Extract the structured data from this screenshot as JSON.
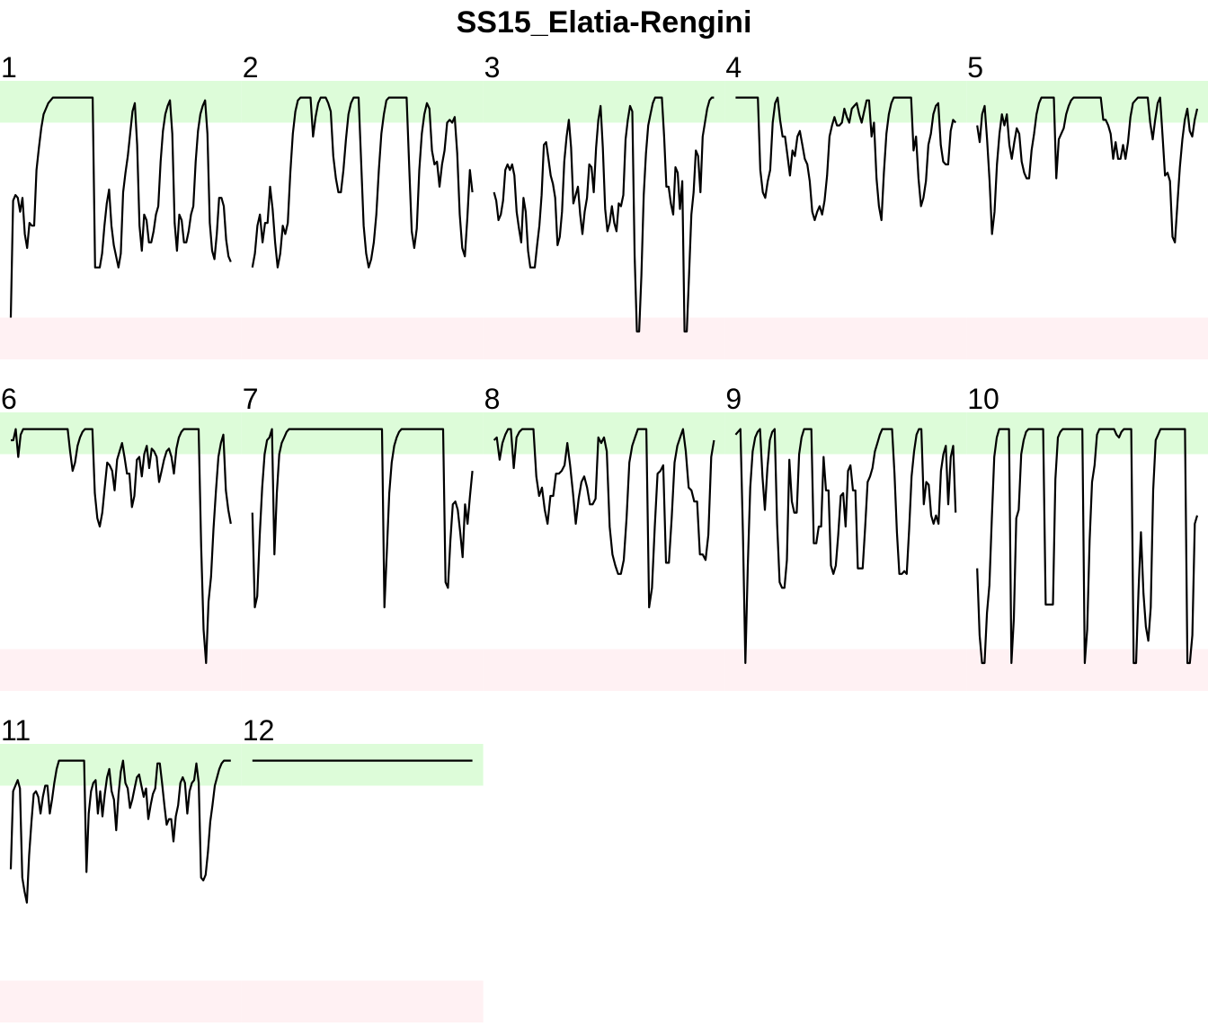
{
  "chart_data": {
    "type": "line",
    "title": "SS15_Elatia-Rengini",
    "xlabel": "",
    "ylabel": "",
    "ylim": [
      0,
      1
    ],
    "grid": false,
    "legend": "none",
    "band_colors": {
      "upper": "#ddfcd9",
      "lower": "#fff1f3"
    },
    "line_color": "#000000",
    "bands": {
      "upper": [
        0.85,
        1.0
      ],
      "lower": [
        0.0,
        0.15
      ]
    },
    "panels": [
      {
        "label": "1",
        "values": [
          0.15,
          0.57,
          0.59,
          0.58,
          0.53,
          0.58,
          0.45,
          0.4,
          0.49,
          0.48,
          0.48,
          0.68,
          0.76,
          0.83,
          0.88,
          0.9,
          0.92,
          0.93,
          0.94,
          0.94,
          0.94,
          0.94,
          0.94,
          0.94,
          0.94,
          0.94,
          0.94,
          0.94,
          0.94,
          0.94,
          0.94,
          0.94,
          0.94,
          0.94,
          0.94,
          0.94,
          0.33,
          0.33,
          0.33,
          0.38,
          0.48,
          0.56,
          0.61,
          0.48,
          0.41,
          0.37,
          0.33,
          0.38,
          0.6,
          0.67,
          0.73,
          0.81,
          0.89,
          0.92,
          0.77,
          0.48,
          0.39,
          0.52,
          0.5,
          0.42,
          0.42,
          0.46,
          0.52,
          0.55,
          0.71,
          0.82,
          0.88,
          0.91,
          0.93,
          0.81,
          0.49,
          0.39,
          0.52,
          0.5,
          0.42,
          0.42,
          0.46,
          0.52,
          0.55,
          0.71,
          0.82,
          0.88,
          0.91,
          0.93,
          0.81,
          0.49,
          0.39,
          0.36,
          0.45,
          0.58,
          0.58,
          0.55,
          0.43,
          0.37,
          0.35
        ]
      },
      {
        "label": "2",
        "values": [
          0.33,
          0.38,
          0.48,
          0.52,
          0.42,
          0.49,
          0.49,
          0.62,
          0.54,
          0.42,
          0.33,
          0.38,
          0.48,
          0.45,
          0.49,
          0.67,
          0.81,
          0.89,
          0.93,
          0.94,
          0.94,
          0.94,
          0.94,
          0.94,
          0.8,
          0.87,
          0.92,
          0.94,
          0.94,
          0.94,
          0.92,
          0.89,
          0.73,
          0.65,
          0.6,
          0.6,
          0.68,
          0.79,
          0.88,
          0.92,
          0.94,
          0.94,
          0.94,
          0.71,
          0.48,
          0.38,
          0.33,
          0.36,
          0.42,
          0.52,
          0.68,
          0.81,
          0.88,
          0.93,
          0.94,
          0.94,
          0.94,
          0.94,
          0.94,
          0.94,
          0.94,
          0.94,
          0.69,
          0.46,
          0.4,
          0.47,
          0.68,
          0.81,
          0.88,
          0.92,
          0.9,
          0.75,
          0.7,
          0.71,
          0.62,
          0.7,
          0.75,
          0.85,
          0.86,
          0.85,
          0.87,
          0.74,
          0.52,
          0.4,
          0.37,
          0.51,
          0.68,
          0.6
        ]
      },
      {
        "label": "3",
        "values": [
          0.6,
          0.57,
          0.5,
          0.52,
          0.57,
          0.68,
          0.7,
          0.68,
          0.7,
          0.66,
          0.53,
          0.47,
          0.42,
          0.58,
          0.53,
          0.39,
          0.33,
          0.33,
          0.33,
          0.41,
          0.48,
          0.59,
          0.77,
          0.78,
          0.72,
          0.66,
          0.63,
          0.58,
          0.41,
          0.44,
          0.53,
          0.71,
          0.8,
          0.86,
          0.76,
          0.56,
          0.59,
          0.62,
          0.52,
          0.45,
          0.53,
          0.58,
          0.7,
          0.69,
          0.6,
          0.76,
          0.86,
          0.91,
          0.76,
          0.54,
          0.46,
          0.49,
          0.55,
          0.49,
          0.46,
          0.56,
          0.55,
          0.59,
          0.79,
          0.86,
          0.91,
          0.89,
          0.37,
          0.1,
          0.1,
          0.3,
          0.59,
          0.74,
          0.84,
          0.88,
          0.92,
          0.94,
          0.94,
          0.94,
          0.94,
          0.8,
          0.62,
          0.62,
          0.56,
          0.52,
          0.69,
          0.67,
          0.54,
          0.64,
          0.1,
          0.1,
          0.3,
          0.52,
          0.6,
          0.75,
          0.73,
          0.6,
          0.8,
          0.85,
          0.9,
          0.93,
          0.94,
          0.94
        ]
      },
      {
        "label": "4",
        "values": [
          0.94,
          0.94,
          0.94,
          0.94,
          0.94,
          0.94,
          0.94,
          0.94,
          0.94,
          0.94,
          0.68,
          0.6,
          0.58,
          0.64,
          0.68,
          0.85,
          0.92,
          0.94,
          0.86,
          0.8,
          0.8,
          0.73,
          0.66,
          0.75,
          0.73,
          0.8,
          0.82,
          0.77,
          0.72,
          0.7,
          0.64,
          0.53,
          0.5,
          0.53,
          0.55,
          0.52,
          0.57,
          0.66,
          0.8,
          0.84,
          0.87,
          0.84,
          0.84,
          0.85,
          0.9,
          0.87,
          0.85,
          0.9,
          0.91,
          0.92,
          0.88,
          0.85,
          0.89,
          0.93,
          0.93,
          0.8,
          0.85,
          0.65,
          0.55,
          0.5,
          0.67,
          0.81,
          0.88,
          0.92,
          0.94,
          0.94,
          0.94,
          0.94,
          0.94,
          0.94,
          0.94,
          0.94,
          0.75,
          0.8,
          0.65,
          0.55,
          0.58,
          0.64,
          0.77,
          0.81,
          0.88,
          0.91,
          0.92,
          0.77,
          0.71,
          0.7,
          0.7,
          0.82,
          0.86,
          0.85
        ]
      },
      {
        "label": "5",
        "values": [
          0.84,
          0.78,
          0.88,
          0.91,
          0.79,
          0.64,
          0.45,
          0.53,
          0.7,
          0.81,
          0.88,
          0.84,
          0.88,
          0.77,
          0.72,
          0.78,
          0.83,
          0.81,
          0.71,
          0.67,
          0.65,
          0.65,
          0.75,
          0.81,
          0.88,
          0.92,
          0.94,
          0.94,
          0.94,
          0.94,
          0.94,
          0.94,
          0.65,
          0.79,
          0.81,
          0.83,
          0.88,
          0.91,
          0.93,
          0.94,
          0.94,
          0.94,
          0.94,
          0.94,
          0.94,
          0.94,
          0.94,
          0.94,
          0.94,
          0.94,
          0.94,
          0.86,
          0.86,
          0.84,
          0.81,
          0.72,
          0.78,
          0.72,
          0.72,
          0.77,
          0.72,
          0.78,
          0.87,
          0.92,
          0.93,
          0.94,
          0.94,
          0.94,
          0.94,
          0.94,
          0.85,
          0.79,
          0.86,
          0.92,
          0.94,
          0.8,
          0.66,
          0.67,
          0.64,
          0.44,
          0.42,
          0.56,
          0.69,
          0.79,
          0.86,
          0.9,
          0.82,
          0.8,
          0.86,
          0.9
        ]
      },
      {
        "label": "6",
        "values": [
          0.9,
          0.9,
          0.94,
          0.84,
          0.92,
          0.94,
          0.94,
          0.94,
          0.94,
          0.94,
          0.94,
          0.94,
          0.94,
          0.94,
          0.94,
          0.94,
          0.94,
          0.94,
          0.94,
          0.94,
          0.94,
          0.94,
          0.94,
          0.94,
          0.86,
          0.79,
          0.82,
          0.88,
          0.91,
          0.93,
          0.94,
          0.94,
          0.94,
          0.94,
          0.71,
          0.62,
          0.59,
          0.64,
          0.73,
          0.82,
          0.81,
          0.79,
          0.72,
          0.83,
          0.86,
          0.89,
          0.84,
          0.78,
          0.78,
          0.66,
          0.7,
          0.83,
          0.84,
          0.77,
          0.85,
          0.88,
          0.8,
          0.87,
          0.86,
          0.84,
          0.75,
          0.79,
          0.83,
          0.86,
          0.87,
          0.84,
          0.78,
          0.87,
          0.91,
          0.93,
          0.94,
          0.94,
          0.94,
          0.94,
          0.94,
          0.94,
          0.94,
          0.52,
          0.22,
          0.1,
          0.32,
          0.41,
          0.58,
          0.72,
          0.84,
          0.89,
          0.92,
          0.72,
          0.65,
          0.6
        ]
      },
      {
        "label": "7",
        "values": [
          0.64,
          0.3,
          0.34,
          0.56,
          0.73,
          0.85,
          0.9,
          0.91,
          0.94,
          0.49,
          0.71,
          0.85,
          0.89,
          0.91,
          0.93,
          0.94,
          0.94,
          0.94,
          0.94,
          0.94,
          0.94,
          0.94,
          0.94,
          0.94,
          0.94,
          0.94,
          0.94,
          0.94,
          0.94,
          0.94,
          0.94,
          0.94,
          0.94,
          0.94,
          0.94,
          0.94,
          0.94,
          0.94,
          0.94,
          0.94,
          0.94,
          0.94,
          0.94,
          0.94,
          0.94,
          0.94,
          0.94,
          0.94,
          0.94,
          0.94,
          0.94,
          0.94,
          0.94,
          0.94,
          0.3,
          0.5,
          0.71,
          0.82,
          0.88,
          0.91,
          0.93,
          0.94,
          0.94,
          0.94,
          0.94,
          0.94,
          0.94,
          0.94,
          0.94,
          0.94,
          0.94,
          0.94,
          0.94,
          0.94,
          0.94,
          0.94,
          0.94,
          0.94,
          0.94,
          0.39,
          0.37,
          0.54,
          0.67,
          0.68,
          0.65,
          0.57,
          0.48,
          0.67,
          0.6,
          0.7,
          0.79
        ]
      },
      {
        "label": "8",
        "values": [
          0.9,
          0.91,
          0.83,
          0.89,
          0.92,
          0.94,
          0.94,
          0.8,
          0.91,
          0.93,
          0.94,
          0.94,
          0.94,
          0.94,
          0.94,
          0.77,
          0.7,
          0.73,
          0.65,
          0.6,
          0.7,
          0.7,
          0.78,
          0.78,
          0.79,
          0.81,
          0.89,
          0.81,
          0.71,
          0.6,
          0.69,
          0.75,
          0.77,
          0.73,
          0.67,
          0.67,
          0.69,
          0.91,
          0.89,
          0.91,
          0.86,
          0.59,
          0.49,
          0.45,
          0.42,
          0.42,
          0.47,
          0.62,
          0.82,
          0.88,
          0.91,
          0.94,
          0.94,
          0.94,
          0.94,
          0.3,
          0.37,
          0.59,
          0.78,
          0.79,
          0.81,
          0.46,
          0.46,
          0.62,
          0.82,
          0.88,
          0.91,
          0.94,
          0.86,
          0.73,
          0.72,
          0.68,
          0.68,
          0.49,
          0.49,
          0.47,
          0.56,
          0.84,
          0.9
        ]
      },
      {
        "label": "9",
        "values": [
          0.92,
          0.93,
          0.94,
          0.56,
          0.1,
          0.45,
          0.73,
          0.86,
          0.91,
          0.93,
          0.94,
          0.77,
          0.65,
          0.8,
          0.9,
          0.93,
          0.94,
          0.6,
          0.39,
          0.37,
          0.37,
          0.47,
          0.83,
          0.68,
          0.64,
          0.64,
          0.85,
          0.91,
          0.94,
          0.94,
          0.94,
          0.94,
          0.53,
          0.53,
          0.59,
          0.59,
          0.84,
          0.72,
          0.72,
          0.45,
          0.42,
          0.45,
          0.56,
          0.7,
          0.71,
          0.59,
          0.79,
          0.81,
          0.72,
          0.72,
          0.44,
          0.44,
          0.44,
          0.59,
          0.75,
          0.77,
          0.8,
          0.86,
          0.89,
          0.92,
          0.94,
          0.94,
          0.94,
          0.94,
          0.94,
          0.78,
          0.57,
          0.42,
          0.42,
          0.43,
          0.42,
          0.58,
          0.77,
          0.86,
          0.92,
          0.94,
          0.94,
          0.67,
          0.75,
          0.74,
          0.63,
          0.6,
          0.63,
          0.6,
          0.79,
          0.85,
          0.88,
          0.67,
          0.84,
          0.88,
          0.64
        ]
      },
      {
        "label": "10",
        "values": [
          0.44,
          0.2,
          0.1,
          0.1,
          0.28,
          0.38,
          0.62,
          0.84,
          0.91,
          0.94,
          0.94,
          0.94,
          0.94,
          0.94,
          0.1,
          0.26,
          0.62,
          0.65,
          0.85,
          0.9,
          0.93,
          0.94,
          0.94,
          0.94,
          0.94,
          0.94,
          0.94,
          0.94,
          0.31,
          0.31,
          0.31,
          0.31,
          0.76,
          0.91,
          0.93,
          0.94,
          0.94,
          0.94,
          0.94,
          0.94,
          0.94,
          0.94,
          0.94,
          0.94,
          0.1,
          0.22,
          0.54,
          0.75,
          0.81,
          0.92,
          0.94,
          0.94,
          0.94,
          0.94,
          0.94,
          0.94,
          0.94,
          0.92,
          0.91,
          0.93,
          0.94,
          0.94,
          0.94,
          0.94,
          0.1,
          0.1,
          0.36,
          0.57,
          0.35,
          0.23,
          0.18,
          0.3,
          0.72,
          0.9,
          0.92,
          0.94,
          0.94,
          0.94,
          0.94,
          0.94,
          0.94,
          0.94,
          0.94,
          0.94,
          0.94,
          0.94,
          0.1,
          0.1,
          0.2,
          0.6,
          0.63
        ]
      },
      {
        "label": "11",
        "values": [
          0.55,
          0.83,
          0.85,
          0.87,
          0.84,
          0.52,
          0.47,
          0.43,
          0.6,
          0.72,
          0.82,
          0.83,
          0.81,
          0.75,
          0.81,
          0.85,
          0.85,
          0.75,
          0.8,
          0.86,
          0.91,
          0.94,
          0.94,
          0.94,
          0.94,
          0.94,
          0.94,
          0.94,
          0.94,
          0.94,
          0.94,
          0.94,
          0.94,
          0.54,
          0.75,
          0.83,
          0.86,
          0.87,
          0.75,
          0.83,
          0.74,
          0.82,
          0.88,
          0.91,
          0.83,
          0.8,
          0.69,
          0.82,
          0.9,
          0.94,
          0.86,
          0.84,
          0.77,
          0.8,
          0.84,
          0.88,
          0.89,
          0.85,
          0.81,
          0.84,
          0.73,
          0.78,
          0.82,
          0.84,
          0.93,
          0.93,
          0.86,
          0.78,
          0.71,
          0.73,
          0.73,
          0.65,
          0.74,
          0.78,
          0.86,
          0.88,
          0.86,
          0.75,
          0.83,
          0.86,
          0.87,
          0.93,
          0.86,
          0.52,
          0.51,
          0.53,
          0.61,
          0.72,
          0.78,
          0.85,
          0.88,
          0.91,
          0.93,
          0.94,
          0.94,
          0.94,
          0.94
        ]
      },
      {
        "label": "12",
        "values": [
          0.94,
          0.94
        ]
      }
    ]
  }
}
